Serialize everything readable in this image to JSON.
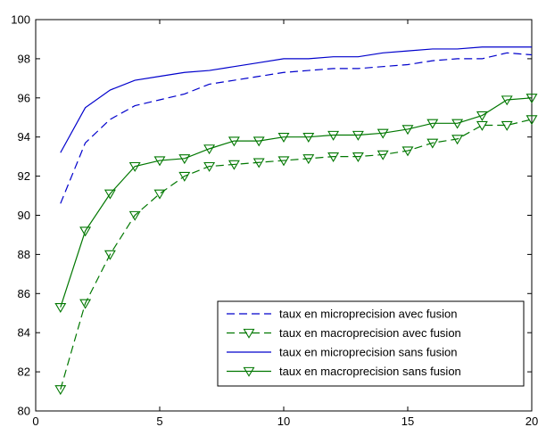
{
  "chart_data": {
    "type": "line",
    "title": "",
    "xlabel": "",
    "ylabel": "",
    "xlim": [
      0,
      20
    ],
    "ylim": [
      80,
      100
    ],
    "x_ticks": [
      0,
      5,
      10,
      15,
      20
    ],
    "y_ticks": [
      80,
      82,
      84,
      86,
      88,
      90,
      92,
      94,
      96,
      98,
      100
    ],
    "grid": false,
    "legend_position": "bottom-right",
    "x": [
      1,
      2,
      3,
      4,
      5,
      6,
      7,
      8,
      9,
      10,
      11,
      12,
      13,
      14,
      15,
      16,
      17,
      18,
      19,
      20
    ],
    "series": [
      {
        "name": "taux en microprecision avec fusion",
        "color": "#0000cc",
        "line_style": "dashed",
        "marker": "none",
        "values": [
          90.6,
          93.7,
          94.9,
          95.6,
          95.9,
          96.2,
          96.7,
          96.9,
          97.1,
          97.3,
          97.4,
          97.5,
          97.5,
          97.6,
          97.7,
          97.9,
          98.0,
          98.0,
          98.3,
          98.2
        ]
      },
      {
        "name": "taux en macroprecision avec fusion",
        "color": "#007700",
        "line_style": "dashed",
        "marker": "triangle-down",
        "values": [
          81.1,
          85.5,
          88.0,
          90.0,
          91.1,
          92.0,
          92.5,
          92.6,
          92.7,
          92.8,
          92.9,
          93.0,
          93.0,
          93.1,
          93.3,
          93.7,
          93.9,
          94.6,
          94.6,
          94.9
        ]
      },
      {
        "name": "taux en microprecision sans fusion",
        "color": "#0000cc",
        "line_style": "solid",
        "marker": "none",
        "values": [
          93.2,
          95.5,
          96.4,
          96.9,
          97.1,
          97.3,
          97.4,
          97.6,
          97.8,
          98.0,
          98.0,
          98.1,
          98.1,
          98.3,
          98.4,
          98.5,
          98.5,
          98.6,
          98.6,
          98.6
        ]
      },
      {
        "name": "taux en macroprecision sans fusion",
        "color": "#007700",
        "line_style": "solid",
        "marker": "triangle-down",
        "values": [
          85.3,
          89.2,
          91.1,
          92.5,
          92.8,
          92.9,
          93.4,
          93.8,
          93.8,
          94.0,
          94.0,
          94.1,
          94.1,
          94.2,
          94.4,
          94.7,
          94.7,
          95.1,
          95.9,
          96.0
        ]
      }
    ]
  }
}
